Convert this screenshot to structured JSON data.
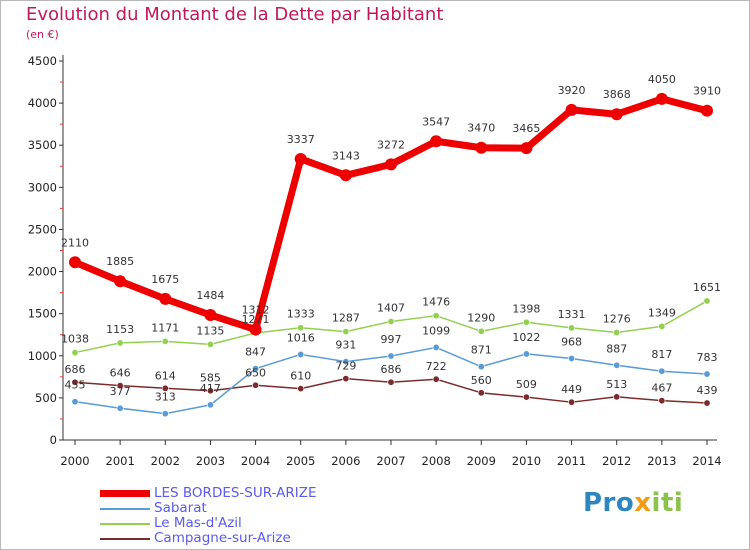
{
  "title": "Evolution du Montant de la Dette par Habitant",
  "subtitle": "(en €)",
  "chart_data": {
    "type": "line",
    "title": "Evolution du Montant de la Dette par Habitant",
    "ylabel": "(en €)",
    "xlabel": "",
    "ylim": [
      0,
      4500
    ],
    "yticks": [
      0,
      500,
      1000,
      1500,
      2000,
      2500,
      3000,
      3500,
      4000,
      4500
    ],
    "grid": false,
    "legend": "bottom-left",
    "x": [
      "2000",
      "2001",
      "2002",
      "2003",
      "2004",
      "2005",
      "2006",
      "2007",
      "2008",
      "2009",
      "2010",
      "2011",
      "2012",
      "2013",
      "2014"
    ],
    "series": [
      {
        "name": "LES BORDES-SUR-ARIZE",
        "color": "#ee0000",
        "values": [
          2110,
          1885,
          1675,
          1484,
          1312,
          3337,
          3143,
          3272,
          3547,
          3470,
          3465,
          3920,
          3868,
          4050,
          3910
        ]
      },
      {
        "name": "Sabarat",
        "color": "#5b9bd5",
        "values": [
          455,
          377,
          313,
          417,
          847,
          1016,
          931,
          997,
          1099,
          871,
          1022,
          968,
          887,
          817,
          783
        ]
      },
      {
        "name": "Le Mas-d'Azil",
        "color": "#92d050",
        "values": [
          1038,
          1153,
          1171,
          1135,
          1271,
          1333,
          1287,
          1407,
          1476,
          1290,
          1398,
          1331,
          1276,
          1349,
          1651
        ]
      },
      {
        "name": "Campagne-sur-Arize",
        "color": "#7b2b2b",
        "values": [
          686,
          646,
          614,
          585,
          650,
          610,
          729,
          686,
          722,
          560,
          509,
          449,
          513,
          467,
          439
        ]
      }
    ]
  },
  "legend": {
    "items": [
      {
        "label": "LES BORDES-SUR-ARIZE",
        "color": "#ee0000"
      },
      {
        "label": "Sabarat",
        "color": "#5b9bd5"
      },
      {
        "label": "Le Mas-d'Azil",
        "color": "#92d050"
      },
      {
        "label": "Campagne-sur-Arize",
        "color": "#7b2b2b"
      }
    ]
  },
  "logo": {
    "part1": "Pro",
    "part2": "x",
    "part3": "iti"
  }
}
